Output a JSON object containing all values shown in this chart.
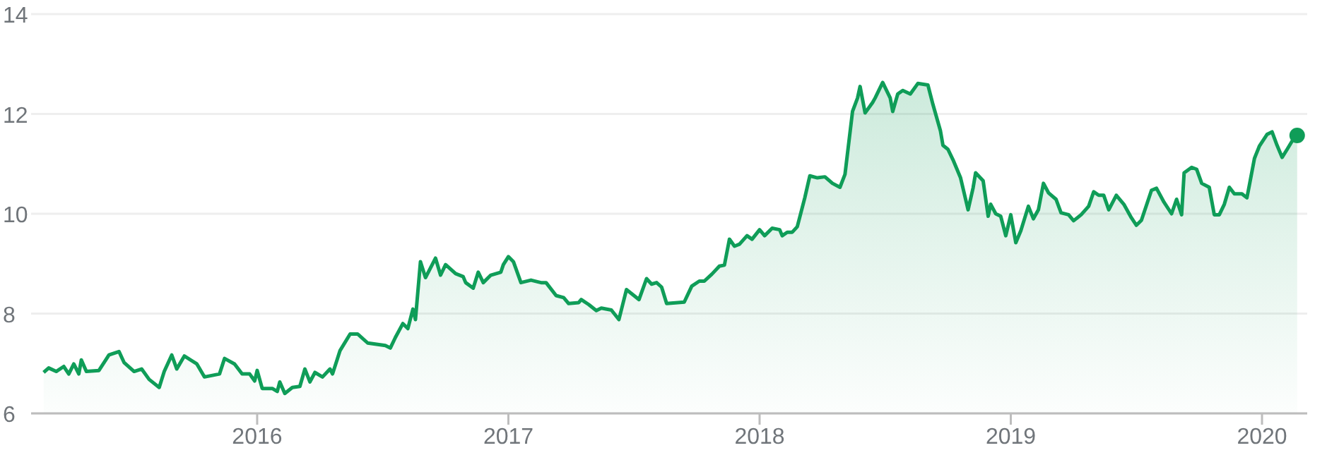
{
  "chart_data": {
    "type": "area",
    "color": "#0f9d58",
    "grid": "y",
    "xlim": [
      2015.1,
      2020.18
    ],
    "xticks": [
      2016,
      2017,
      2018,
      2019,
      2020
    ],
    "ylim": [
      6,
      14
    ],
    "yticks": [
      6,
      8,
      10,
      12,
      14
    ],
    "x": [
      2015.15,
      2015.17,
      2015.2,
      2015.23,
      2015.25,
      2015.27,
      2015.29,
      2015.3,
      2015.32,
      2015.37,
      2015.41,
      2015.45,
      2015.47,
      2015.51,
      2015.54,
      2015.57,
      2015.61,
      2015.63,
      2015.66,
      2015.68,
      2015.71,
      2015.76,
      2015.79,
      2015.85,
      2015.87,
      2015.91,
      2015.94,
      2015.97,
      2015.99,
      2016.0,
      2016.02,
      2016.06,
      2016.08,
      2016.09,
      2016.11,
      2016.14,
      2016.17,
      2016.19,
      2016.21,
      2016.23,
      2016.26,
      2016.29,
      2016.3,
      2016.33,
      2016.37,
      2016.4,
      2016.44,
      2016.51,
      2016.53,
      2016.55,
      2016.58,
      2016.6,
      2016.62,
      2016.63,
      2016.65,
      2016.67,
      2016.71,
      2016.73,
      2016.75,
      2016.79,
      2016.82,
      2016.83,
      2016.86,
      2016.88,
      2016.9,
      2016.93,
      2016.97,
      2016.98,
      2017.0,
      2017.02,
      2017.05,
      2017.09,
      2017.13,
      2017.15,
      2017.19,
      2017.22,
      2017.24,
      2017.28,
      2017.29,
      2017.32,
      2017.35,
      2017.37,
      2017.41,
      2017.44,
      2017.47,
      2017.5,
      2017.52,
      2017.55,
      2017.57,
      2017.59,
      2017.61,
      2017.63,
      2017.7,
      2017.73,
      2017.76,
      2017.78,
      2017.81,
      2017.84,
      2017.86,
      2017.88,
      2017.9,
      2017.92,
      2017.95,
      2017.97,
      2018.0,
      2018.02,
      2018.05,
      2018.08,
      2018.09,
      2018.11,
      2018.13,
      2018.15,
      2018.18,
      2018.2,
      2018.23,
      2018.26,
      2018.29,
      2018.32,
      2018.34,
      2018.37,
      2018.39,
      2018.4,
      2018.42,
      2018.45,
      2018.46,
      2018.49,
      2018.52,
      2018.53,
      2018.55,
      2018.57,
      2018.6,
      2018.63,
      2018.67,
      2018.69,
      2018.72,
      2018.73,
      2018.75,
      2018.77,
      2018.8,
      2018.83,
      2018.85,
      2018.86,
      2018.89,
      2018.91,
      2018.92,
      2018.94,
      2018.96,
      2018.98,
      2019.0,
      2019.02,
      2019.04,
      2019.07,
      2019.09,
      2019.11,
      2019.13,
      2019.15,
      2019.18,
      2019.2,
      2019.23,
      2019.25,
      2019.28,
      2019.31,
      2019.33,
      2019.35,
      2019.37,
      2019.39,
      2019.42,
      2019.45,
      2019.48,
      2019.5,
      2019.52,
      2019.56,
      2019.58,
      2019.61,
      2019.64,
      2019.66,
      2019.68,
      2019.69,
      2019.72,
      2019.74,
      2019.76,
      2019.79,
      2019.81,
      2019.83,
      2019.85,
      2019.87,
      2019.89,
      2019.92,
      2019.94,
      2019.95,
      2019.97,
      2019.99,
      2020.02,
      2020.04,
      2020.06,
      2020.08,
      2020.1,
      2020.13,
      2020.14
    ],
    "values": [
      6.82,
      6.91,
      6.84,
      6.94,
      6.79,
      6.99,
      6.79,
      7.07,
      6.84,
      6.86,
      7.17,
      7.24,
      7.02,
      6.84,
      6.89,
      6.68,
      6.52,
      6.84,
      7.17,
      6.89,
      7.15,
      6.99,
      6.73,
      6.79,
      7.1,
      6.99,
      6.79,
      6.79,
      6.65,
      6.86,
      6.5,
      6.5,
      6.44,
      6.63,
      6.4,
      6.52,
      6.54,
      6.89,
      6.63,
      6.82,
      6.73,
      6.89,
      6.79,
      7.26,
      7.59,
      7.59,
      7.41,
      7.36,
      7.31,
      7.52,
      7.8,
      7.7,
      8.09,
      7.88,
      9.04,
      8.72,
      9.11,
      8.77,
      8.98,
      8.8,
      8.74,
      8.62,
      8.51,
      8.83,
      8.62,
      8.77,
      8.83,
      8.98,
      9.14,
      9.04,
      8.62,
      8.67,
      8.62,
      8.62,
      8.36,
      8.32,
      8.2,
      8.22,
      8.28,
      8.18,
      8.06,
      8.11,
      8.07,
      7.88,
      8.48,
      8.36,
      8.28,
      8.7,
      8.59,
      8.62,
      8.53,
      8.2,
      8.23,
      8.55,
      8.65,
      8.65,
      8.79,
      8.95,
      8.97,
      9.49,
      9.35,
      9.39,
      9.56,
      9.49,
      9.68,
      9.56,
      9.71,
      9.68,
      9.56,
      9.63,
      9.63,
      9.74,
      10.32,
      10.76,
      10.72,
      10.74,
      10.61,
      10.53,
      10.79,
      12.05,
      12.32,
      12.55,
      12.02,
      12.23,
      12.32,
      12.63,
      12.32,
      12.05,
      12.4,
      12.47,
      12.4,
      12.61,
      12.58,
      12.19,
      11.66,
      11.37,
      11.29,
      11.08,
      10.72,
      10.08,
      10.52,
      10.82,
      10.66,
      9.95,
      10.19,
      10.0,
      9.95,
      9.56,
      9.98,
      9.42,
      9.66,
      10.15,
      9.9,
      10.08,
      10.61,
      10.42,
      10.29,
      10.02,
      9.98,
      9.86,
      9.98,
      10.15,
      10.44,
      10.37,
      10.37,
      10.08,
      10.37,
      10.19,
      9.92,
      9.77,
      9.87,
      10.47,
      10.51,
      10.23,
      10.0,
      10.29,
      9.98,
      10.82,
      10.93,
      10.89,
      10.61,
      10.53,
      9.98,
      9.98,
      10.19,
      10.53,
      10.4,
      10.4,
      10.32,
      10.58,
      11.11,
      11.36,
      11.59,
      11.64,
      11.37,
      11.13,
      11.29,
      11.54,
      11.57
    ]
  }
}
